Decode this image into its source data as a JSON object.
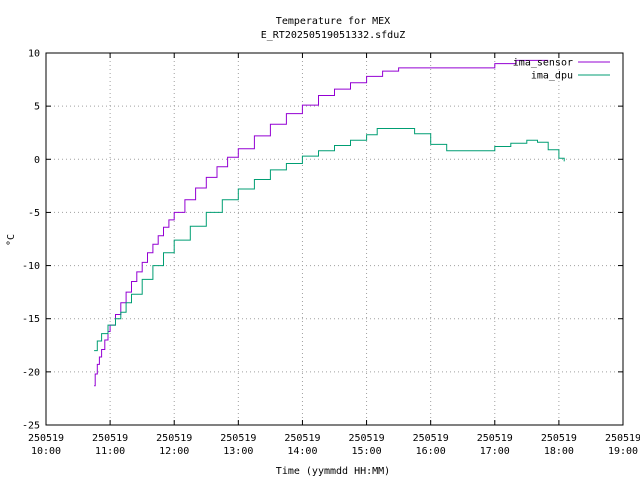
{
  "chart_data": {
    "type": "line",
    "title": "Temperature for MEX",
    "subtitle": "E_RT20250519051332.sfduZ",
    "xlabel": "Time (yymmdd HH:MM)",
    "ylabel": "°C",
    "xlim": [
      "10:00",
      "19:00"
    ],
    "ylim": [
      -25,
      10
    ],
    "yticks": [
      "-25",
      "-20",
      "-15",
      "-10",
      "-5",
      "0",
      "5",
      "10"
    ],
    "xticks": [
      {
        "date": "250519",
        "time": "10:00"
      },
      {
        "date": "250519",
        "time": "11:00"
      },
      {
        "date": "250519",
        "time": "12:00"
      },
      {
        "date": "250519",
        "time": "13:00"
      },
      {
        "date": "250519",
        "time": "14:00"
      },
      {
        "date": "250519",
        "time": "15:00"
      },
      {
        "date": "250519",
        "time": "16:00"
      },
      {
        "date": "250519",
        "time": "17:00"
      },
      {
        "date": "250519",
        "time": "18:00"
      },
      {
        "date": "250519",
        "time": "19:00"
      }
    ],
    "grid": true,
    "legend_position": "top-right",
    "series": [
      {
        "name": "ima_sensor",
        "color": "#9400d3",
        "points": [
          [
            "10:45",
            -21.3
          ],
          [
            "10:46",
            -20.2
          ],
          [
            "10:48",
            -19.3
          ],
          [
            "10:50",
            -18.6
          ],
          [
            "10:52",
            -17.9
          ],
          [
            "10:55",
            -17.0
          ],
          [
            "10:58",
            -16.2
          ],
          [
            "11:00",
            -15.6
          ],
          [
            "11:05",
            -14.6
          ],
          [
            "11:10",
            -13.5
          ],
          [
            "11:15",
            -12.5
          ],
          [
            "11:20",
            -11.5
          ],
          [
            "11:25",
            -10.6
          ],
          [
            "11:30",
            -9.7
          ],
          [
            "11:35",
            -8.8
          ],
          [
            "11:40",
            -8.0
          ],
          [
            "11:45",
            -7.2
          ],
          [
            "11:50",
            -6.4
          ],
          [
            "11:55",
            -5.7
          ],
          [
            "12:00",
            -5.0
          ],
          [
            "12:10",
            -3.8
          ],
          [
            "12:20",
            -2.7
          ],
          [
            "12:30",
            -1.7
          ],
          [
            "12:40",
            -0.7
          ],
          [
            "12:50",
            0.2
          ],
          [
            "13:00",
            1.0
          ],
          [
            "13:15",
            2.2
          ],
          [
            "13:30",
            3.3
          ],
          [
            "13:45",
            4.3
          ],
          [
            "14:00",
            5.1
          ],
          [
            "14:15",
            6.0
          ],
          [
            "14:30",
            6.6
          ],
          [
            "14:45",
            7.2
          ],
          [
            "15:00",
            7.8
          ],
          [
            "15:15",
            8.3
          ],
          [
            "15:30",
            8.6
          ],
          [
            "16:00",
            8.6
          ],
          [
            "16:30",
            8.6
          ],
          [
            "16:55",
            8.6
          ],
          [
            "17:00",
            9.0
          ],
          [
            "17:20",
            9.3
          ],
          [
            "17:50",
            9.3
          ]
        ]
      },
      {
        "name": "ima_dpu",
        "color": "#009e73",
        "points": [
          [
            "10:45",
            -18.0
          ],
          [
            "10:48",
            -17.1
          ],
          [
            "10:52",
            -16.4
          ],
          [
            "10:58",
            -15.6
          ],
          [
            "11:05",
            -15.0
          ],
          [
            "11:10",
            -14.4
          ],
          [
            "11:15",
            -13.5
          ],
          [
            "11:20",
            -12.7
          ],
          [
            "11:30",
            -11.3
          ],
          [
            "11:40",
            -10.0
          ],
          [
            "11:50",
            -8.8
          ],
          [
            "12:00",
            -7.6
          ],
          [
            "12:15",
            -6.3
          ],
          [
            "12:30",
            -5.0
          ],
          [
            "12:45",
            -3.8
          ],
          [
            "13:00",
            -2.8
          ],
          [
            "13:15",
            -1.9
          ],
          [
            "13:30",
            -1.0
          ],
          [
            "13:45",
            -0.4
          ],
          [
            "14:00",
            0.3
          ],
          [
            "14:15",
            0.8
          ],
          [
            "14:30",
            1.3
          ],
          [
            "14:45",
            1.8
          ],
          [
            "15:00",
            2.3
          ],
          [
            "15:10",
            2.9
          ],
          [
            "15:30",
            2.9
          ],
          [
            "15:45",
            2.4
          ],
          [
            "16:00",
            1.4
          ],
          [
            "16:15",
            0.8
          ],
          [
            "16:45",
            0.8
          ],
          [
            "17:00",
            1.2
          ],
          [
            "17:15",
            1.5
          ],
          [
            "17:30",
            1.8
          ],
          [
            "17:40",
            1.6
          ],
          [
            "17:50",
            0.9
          ],
          [
            "18:00",
            0.1
          ],
          [
            "18:05",
            -0.2
          ]
        ]
      }
    ]
  }
}
